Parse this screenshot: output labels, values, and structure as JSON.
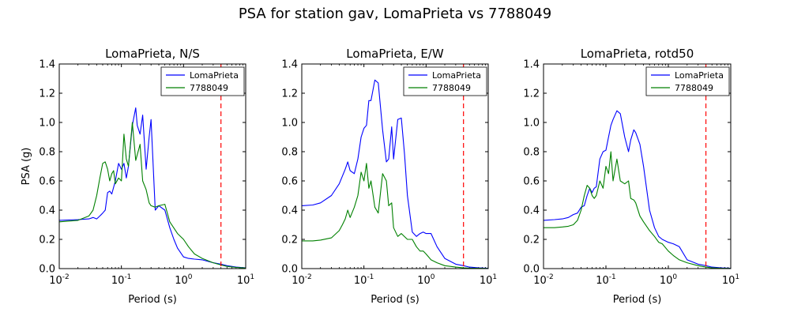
{
  "figure_title": "PSA for station gav, LomaPrieta vs 7788049",
  "colors": {
    "blue": "#0000ff",
    "green": "#008000",
    "red": "#ff0000"
  },
  "chart_data": [
    {
      "type": "line",
      "title": "LomaPrieta, N/S",
      "xlabel": "Period (s)",
      "ylabel": "PSA (g)",
      "xscale": "log",
      "xlim": [
        0.01,
        10
      ],
      "ylim": [
        0,
        1.4
      ],
      "x_tick_labels": [
        "10^-2",
        "10^-1",
        "10^0",
        "10^1"
      ],
      "y_tick_labels": [
        "0.0",
        "0.2",
        "0.4",
        "0.6",
        "0.8",
        "1.0",
        "1.2",
        "1.4"
      ],
      "legend_position": "top-right",
      "vline": {
        "x": 4.0,
        "style": "dashed",
        "color": "#ff0000"
      },
      "series": [
        {
          "name": "LomaPrieta",
          "color": "#0000ff",
          "x": [
            0.01,
            0.02,
            0.03,
            0.035,
            0.04,
            0.045,
            0.05,
            0.055,
            0.06,
            0.065,
            0.07,
            0.08,
            0.09,
            0.1,
            0.11,
            0.12,
            0.13,
            0.15,
            0.17,
            0.18,
            0.2,
            0.22,
            0.25,
            0.28,
            0.3,
            0.35,
            0.4,
            0.5,
            0.6,
            0.7,
            0.8,
            1.0,
            1.2,
            1.5,
            2.0,
            3.0,
            4.0,
            5.0,
            7.0,
            10.0
          ],
          "y": [
            0.33,
            0.335,
            0.34,
            0.35,
            0.34,
            0.36,
            0.38,
            0.4,
            0.52,
            0.53,
            0.51,
            0.6,
            0.72,
            0.68,
            0.72,
            0.62,
            0.7,
            0.98,
            1.1,
            0.98,
            0.92,
            1.05,
            0.68,
            0.9,
            1.02,
            0.4,
            0.43,
            0.4,
            0.28,
            0.2,
            0.14,
            0.08,
            0.07,
            0.065,
            0.06,
            0.04,
            0.03,
            0.02,
            0.01,
            0.005
          ]
        },
        {
          "name": "7788049",
          "color": "#008000",
          "x": [
            0.01,
            0.02,
            0.03,
            0.035,
            0.04,
            0.045,
            0.05,
            0.055,
            0.06,
            0.065,
            0.07,
            0.075,
            0.08,
            0.09,
            0.1,
            0.11,
            0.12,
            0.13,
            0.15,
            0.17,
            0.2,
            0.22,
            0.25,
            0.28,
            0.3,
            0.35,
            0.4,
            0.5,
            0.6,
            0.8,
            1.0,
            1.2,
            1.5,
            2.0,
            3.0,
            4.0,
            5.0,
            7.0,
            10.0
          ],
          "y": [
            0.32,
            0.33,
            0.36,
            0.4,
            0.5,
            0.62,
            0.72,
            0.73,
            0.68,
            0.6,
            0.65,
            0.67,
            0.58,
            0.62,
            0.6,
            0.92,
            0.75,
            0.7,
            1.0,
            0.74,
            0.85,
            0.6,
            0.54,
            0.45,
            0.43,
            0.42,
            0.43,
            0.44,
            0.32,
            0.24,
            0.2,
            0.15,
            0.1,
            0.07,
            0.04,
            0.025,
            0.015,
            0.008,
            0.004
          ]
        }
      ]
    },
    {
      "type": "line",
      "title": "LomaPrieta, E/W",
      "xlabel": "Period (s)",
      "ylabel": "",
      "xscale": "log",
      "xlim": [
        0.01,
        10
      ],
      "ylim": [
        0,
        1.4
      ],
      "x_tick_labels": [
        "10^-2",
        "10^-1",
        "10^0",
        "10^1"
      ],
      "y_tick_labels": [
        "0.0",
        "0.2",
        "0.4",
        "0.6",
        "0.8",
        "1.0",
        "1.2",
        "1.4"
      ],
      "legend_position": "top-right",
      "vline": {
        "x": 4.0,
        "style": "dashed",
        "color": "#ff0000"
      },
      "series": [
        {
          "name": "LomaPrieta",
          "color": "#0000ff",
          "x": [
            0.01,
            0.015,
            0.02,
            0.03,
            0.04,
            0.05,
            0.055,
            0.06,
            0.07,
            0.08,
            0.09,
            0.1,
            0.11,
            0.12,
            0.13,
            0.15,
            0.17,
            0.2,
            0.23,
            0.25,
            0.28,
            0.3,
            0.35,
            0.4,
            0.45,
            0.5,
            0.6,
            0.7,
            0.8,
            0.9,
            1.0,
            1.2,
            1.5,
            2.0,
            3.0,
            4.0,
            5.0,
            7.0,
            10.0
          ],
          "y": [
            0.43,
            0.435,
            0.45,
            0.5,
            0.58,
            0.68,
            0.73,
            0.67,
            0.65,
            0.75,
            0.9,
            0.96,
            0.98,
            1.15,
            1.15,
            1.29,
            1.27,
            0.95,
            0.73,
            0.75,
            0.97,
            0.75,
            1.02,
            1.03,
            0.78,
            0.5,
            0.25,
            0.22,
            0.24,
            0.25,
            0.24,
            0.24,
            0.15,
            0.07,
            0.03,
            0.02,
            0.01,
            0.005,
            0.002
          ]
        },
        {
          "name": "7788049",
          "color": "#008000",
          "x": [
            0.01,
            0.015,
            0.02,
            0.03,
            0.04,
            0.045,
            0.05,
            0.055,
            0.06,
            0.07,
            0.08,
            0.09,
            0.1,
            0.11,
            0.12,
            0.13,
            0.15,
            0.17,
            0.2,
            0.23,
            0.25,
            0.28,
            0.3,
            0.35,
            0.4,
            0.5,
            0.6,
            0.7,
            0.8,
            0.9,
            1.0,
            1.2,
            1.5,
            2.0,
            3.0,
            4.0,
            5.0,
            7.0,
            10.0
          ],
          "y": [
            0.19,
            0.19,
            0.195,
            0.21,
            0.26,
            0.3,
            0.34,
            0.4,
            0.35,
            0.42,
            0.5,
            0.66,
            0.6,
            0.72,
            0.55,
            0.6,
            0.42,
            0.38,
            0.65,
            0.6,
            0.43,
            0.45,
            0.28,
            0.22,
            0.24,
            0.2,
            0.2,
            0.15,
            0.12,
            0.12,
            0.1,
            0.06,
            0.04,
            0.02,
            0.01,
            0.005,
            0.003,
            0.002,
            0.001
          ]
        }
      ]
    },
    {
      "type": "line",
      "title": "LomaPrieta, rotd50",
      "xlabel": "Period (s)",
      "ylabel": "",
      "xscale": "log",
      "xlim": [
        0.01,
        10
      ],
      "ylim": [
        0,
        1.4
      ],
      "x_tick_labels": [
        "10^-2",
        "10^-1",
        "10^0",
        "10^1"
      ],
      "y_tick_labels": [
        "0.0",
        "0.2",
        "0.4",
        "0.6",
        "0.8",
        "1.0",
        "1.2",
        "1.4"
      ],
      "legend_position": "top-right",
      "vline": {
        "x": 4.0,
        "style": "dashed",
        "color": "#ff0000"
      },
      "series": [
        {
          "name": "LomaPrieta",
          "color": "#0000ff",
          "x": [
            0.01,
            0.015,
            0.02,
            0.025,
            0.03,
            0.035,
            0.04,
            0.045,
            0.05,
            0.055,
            0.06,
            0.065,
            0.07,
            0.08,
            0.09,
            0.1,
            0.11,
            0.12,
            0.13,
            0.15,
            0.17,
            0.2,
            0.23,
            0.25,
            0.28,
            0.3,
            0.35,
            0.4,
            0.5,
            0.6,
            0.7,
            0.8,
            1.0,
            1.2,
            1.5,
            2.0,
            3.0,
            4.0,
            5.0,
            7.0,
            10.0
          ],
          "y": [
            0.33,
            0.335,
            0.34,
            0.35,
            0.37,
            0.38,
            0.42,
            0.43,
            0.5,
            0.55,
            0.52,
            0.55,
            0.56,
            0.75,
            0.8,
            0.81,
            0.9,
            0.98,
            1.02,
            1.08,
            1.06,
            0.9,
            0.8,
            0.88,
            0.95,
            0.93,
            0.85,
            0.7,
            0.4,
            0.28,
            0.22,
            0.2,
            0.18,
            0.17,
            0.15,
            0.06,
            0.03,
            0.02,
            0.01,
            0.005,
            0.002
          ]
        },
        {
          "name": "7788049",
          "color": "#008000",
          "x": [
            0.01,
            0.015,
            0.02,
            0.025,
            0.03,
            0.035,
            0.04,
            0.045,
            0.05,
            0.055,
            0.06,
            0.065,
            0.07,
            0.08,
            0.09,
            0.1,
            0.11,
            0.12,
            0.13,
            0.15,
            0.17,
            0.2,
            0.23,
            0.25,
            0.28,
            0.3,
            0.35,
            0.4,
            0.5,
            0.6,
            0.7,
            0.8,
            1.0,
            1.2,
            1.5,
            2.0,
            3.0,
            4.0,
            5.0,
            7.0,
            10.0
          ],
          "y": [
            0.28,
            0.28,
            0.285,
            0.29,
            0.3,
            0.33,
            0.4,
            0.5,
            0.57,
            0.55,
            0.5,
            0.48,
            0.5,
            0.6,
            0.55,
            0.7,
            0.65,
            0.8,
            0.6,
            0.75,
            0.6,
            0.58,
            0.6,
            0.48,
            0.47,
            0.45,
            0.36,
            0.32,
            0.26,
            0.22,
            0.18,
            0.17,
            0.12,
            0.09,
            0.06,
            0.04,
            0.02,
            0.01,
            0.005,
            0.002,
            0.001
          ]
        }
      ]
    }
  ]
}
